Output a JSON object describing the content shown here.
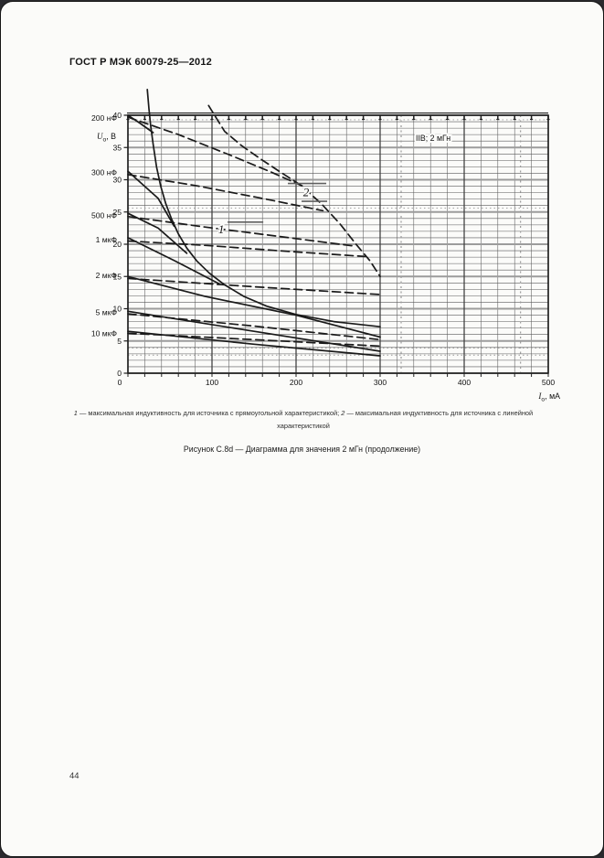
{
  "header": {
    "title": "ГОСТ Р МЭК 60079-25—2012"
  },
  "page_number": "44",
  "figure_caption": "Рисунок С.8d — Диаграмма для значения 2 мГн (продолжение)",
  "caption": {
    "item1_num": "1",
    "item1_text": " — максимальная индуктивность для источника с прямоугольной характеристикой; ",
    "item2_num": "2",
    "item2_text": " — максимальная индуктивность для источника с линейной характеристикой"
  },
  "chart_data": {
    "type": "line",
    "annotation": "IIB; 2 мГн",
    "grid": "on",
    "x_axis": {
      "var": "I",
      "sub": "о",
      "unit": ", мА",
      "lim": [
        0,
        500
      ],
      "ticks": [
        0,
        100,
        200,
        300,
        400,
        500
      ],
      "minor_step": 20
    },
    "y_axis": {
      "var": "U",
      "sub": "о",
      "unit": ", В",
      "lim": [
        0,
        40
      ],
      "ticks": [
        40,
        35,
        30,
        25,
        20,
        15,
        10,
        5,
        0
      ],
      "minor_step": 1
    },
    "capacitance_labels": [
      {
        "text": "200 нФ",
        "v": 39.6
      },
      {
        "text": "300 нФ",
        "v": 31.1
      },
      {
        "text": "500 нФ",
        "v": 24.5
      },
      {
        "text": "1 мкФ",
        "v": 20.7
      },
      {
        "text": "2 мкФ",
        "v": 15.2
      },
      {
        "text": "5 мкФ",
        "v": 9.4
      },
      {
        "text": "10 мкФ",
        "v": 6.2
      }
    ],
    "curve_labels": [
      {
        "text": "1",
        "ma": 111,
        "v": 22.3
      },
      {
        "text": "2",
        "ma": 212,
        "v": 28.0
      }
    ],
    "series": [
      {
        "name": "граница 1 — прямоугольная характеристика",
        "style": "solid",
        "points": [
          [
            23,
            44
          ],
          [
            25,
            41
          ],
          [
            27,
            38.5
          ],
          [
            30,
            35.5
          ],
          [
            34,
            32
          ],
          [
            39,
            29
          ],
          [
            45,
            26.3
          ],
          [
            52,
            23.9
          ],
          [
            60,
            21.6
          ],
          [
            70,
            19.4
          ],
          [
            82,
            17.4
          ],
          [
            97,
            15.5
          ],
          [
            115,
            13.7
          ],
          [
            138,
            11.9
          ],
          [
            165,
            10.4
          ],
          [
            200,
            9.1
          ],
          [
            245,
            8.0
          ],
          [
            300,
            7.2
          ]
        ]
      },
      {
        "name": "граница 2 — линейная характеристика",
        "style": "dashed",
        "points": [
          [
            96,
            41.5
          ],
          [
            103,
            40
          ],
          [
            115,
            37.5
          ],
          [
            135,
            35.3
          ],
          [
            158,
            33.2
          ],
          [
            180,
            31.3
          ],
          [
            205,
            29.2
          ],
          [
            230,
            26.3
          ],
          [
            252,
            23.2
          ],
          [
            272,
            19.9
          ],
          [
            288,
            17.4
          ],
          [
            300,
            15.0
          ]
        ]
      },
      {
        "name": "C = 200 нФ, прямоугольная",
        "style": "solid",
        "points": [
          [
            0,
            40
          ],
          [
            14,
            38.8
          ],
          [
            30,
            37.3
          ]
        ]
      },
      {
        "name": "C = 200 нФ, линейная",
        "style": "dashed",
        "points": [
          [
            0,
            39.7
          ],
          [
            60,
            37.0
          ],
          [
            120,
            33.9
          ],
          [
            170,
            31.2
          ],
          [
            210,
            28.9
          ]
        ]
      },
      {
        "name": "C = 300 нФ, прямоугольная",
        "style": "solid",
        "points": [
          [
            0,
            31.3
          ],
          [
            36,
            27.1
          ],
          [
            55,
            22.8
          ]
        ]
      },
      {
        "name": "C = 300 нФ, линейная",
        "style": "dashed",
        "points": [
          [
            0,
            30.8
          ],
          [
            80,
            29.1
          ],
          [
            160,
            27.1
          ],
          [
            232,
            25.2
          ]
        ]
      },
      {
        "name": "C = 500 нФ, прямоугольная",
        "style": "solid",
        "points": [
          [
            0,
            24.8
          ],
          [
            36,
            22.5
          ],
          [
            70,
            18.6
          ]
        ]
      },
      {
        "name": "C = 500 нФ, линейная",
        "style": "dashed",
        "points": [
          [
            0,
            24.3
          ],
          [
            90,
            22.7
          ],
          [
            180,
            21.2
          ],
          [
            270,
            19.7
          ]
        ]
      },
      {
        "name": "C = 1 мкФ, прямоугольная",
        "style": "solid",
        "points": [
          [
            0,
            21.0
          ],
          [
            56,
            17.4
          ],
          [
            108,
            13.9
          ]
        ]
      },
      {
        "name": "C = 1 мкФ, линейная",
        "style": "dashed",
        "points": [
          [
            0,
            20.5
          ],
          [
            95,
            19.8
          ],
          [
            190,
            18.9
          ],
          [
            282,
            18.1
          ]
        ]
      },
      {
        "name": "C = 2 мкФ, прямоугольная",
        "style": "solid",
        "points": [
          [
            0,
            15.0
          ],
          [
            92,
            11.9
          ],
          [
            200,
            9.0
          ],
          [
            300,
            5.6
          ]
        ]
      },
      {
        "name": "C = 2 мкФ, линейная",
        "style": "dashed",
        "points": [
          [
            0,
            14.7
          ],
          [
            150,
            13.4
          ],
          [
            300,
            12.2
          ]
        ]
      },
      {
        "name": "C = 5 мкФ, прямоугольная",
        "style": "solid",
        "points": [
          [
            0,
            9.6
          ],
          [
            150,
            6.5
          ],
          [
            300,
            3.4
          ]
        ]
      },
      {
        "name": "C = 5 мкФ, линейная",
        "style": "dashed",
        "points": [
          [
            0,
            9.2
          ],
          [
            150,
            7.3
          ],
          [
            300,
            5.2
          ]
        ]
      },
      {
        "name": "C = 10 мкФ, прямоугольная",
        "style": "solid",
        "points": [
          [
            0,
            6.5
          ],
          [
            150,
            4.5
          ],
          [
            300,
            2.7
          ]
        ]
      },
      {
        "name": "C = 10 мкФ, линейная",
        "style": "dashed",
        "points": [
          [
            0,
            6.2
          ],
          [
            150,
            5.2
          ],
          [
            300,
            4.2
          ]
        ]
      }
    ],
    "colors": {
      "curve": "#1a1a1a",
      "grid_minor": "#5a5a5a",
      "grid_major_h": "#9c9c9c",
      "grid_major_v": "#3d3d3d",
      "paper": "#fbfbf9"
    }
  }
}
